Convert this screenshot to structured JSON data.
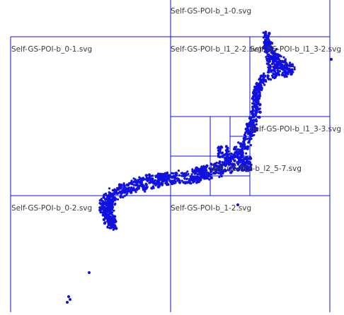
{
  "map": {
    "tile_line_color": "#1010e0",
    "point_color": "#1010e0",
    "tiles": [
      {
        "label": "Self-GS-POI-b_1-0.svg"
      },
      {
        "label": "Self-GS-POI-b_0-1.svg"
      },
      {
        "label": "Self-GS-POI-b_l1_2-2.svg"
      },
      {
        "label": "Self-GS-POI-b_l1_3-2.svg"
      },
      {
        "label": "Self-GS-POI-b_l1_3-3.svg"
      },
      {
        "label": "Self-GS-POI-b_l2_5-7.svg"
      },
      {
        "label": "Self-GS-POI-b_0-2.svg"
      },
      {
        "label": "Self-GS-POI-b_1-2.svg"
      }
    ]
  }
}
